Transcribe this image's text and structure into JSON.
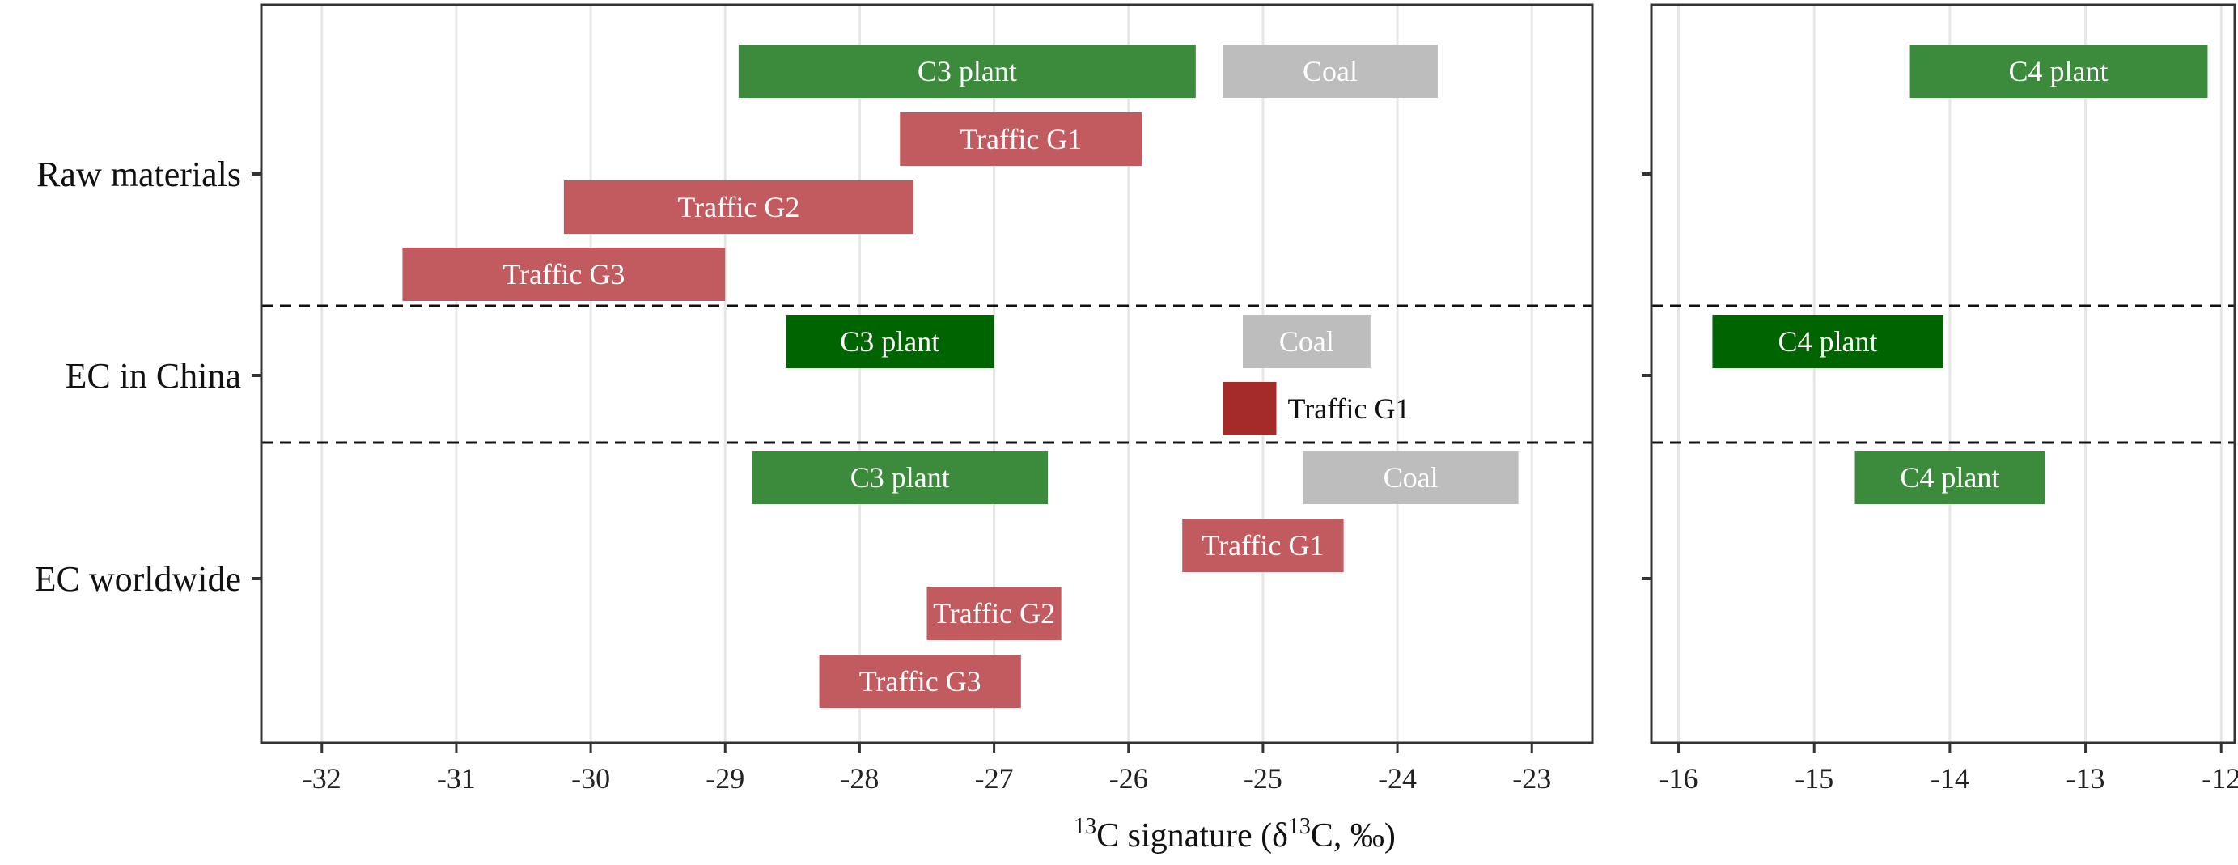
{
  "chart_data": {
    "type": "range-bar",
    "xlabel": {
      "sup1": "13",
      "part1": "C signature (δ",
      "sup2": "13",
      "part2": "C, ‰)"
    },
    "groups": [
      "Raw materials",
      "EC in China",
      "EC worldwide"
    ],
    "panels": [
      {
        "name": "left",
        "xlim": [
          -32.45,
          -22.55
        ],
        "ticks": [
          -32,
          -31,
          -30,
          -29,
          -28,
          -27,
          -26,
          -25,
          -24,
          -23
        ],
        "tick_labels": [
          "-32",
          "-31",
          "-30",
          "-29",
          "-28",
          "-27",
          "-26",
          "-25",
          "-24",
          "-23"
        ]
      },
      {
        "name": "right",
        "xlim": [
          -16.2,
          -11.9
        ],
        "ticks": [
          -16,
          -15,
          -14,
          -13,
          -12
        ],
        "tick_labels": [
          "-16",
          "-15",
          "-14",
          "-13",
          "-12"
        ]
      }
    ],
    "bars": [
      {
        "panel": 0,
        "group": 0,
        "row": 0,
        "label": "C3 plant",
        "range": [
          -28.9,
          -25.5
        ],
        "color": "#3c8a3c",
        "label_pos": "inside"
      },
      {
        "panel": 0,
        "group": 0,
        "row": 0,
        "label": "Coal",
        "range": [
          -25.3,
          -23.7
        ],
        "color": "#bdbdbd",
        "label_pos": "inside"
      },
      {
        "panel": 0,
        "group": 0,
        "row": 1,
        "label": "Traffic G1",
        "range": [
          -27.7,
          -25.9
        ],
        "color": "#c15b60",
        "label_pos": "inside"
      },
      {
        "panel": 0,
        "group": 0,
        "row": 2,
        "label": "Traffic G2",
        "range": [
          -30.2,
          -27.6
        ],
        "color": "#c15b60",
        "label_pos": "inside"
      },
      {
        "panel": 0,
        "group": 0,
        "row": 3,
        "label": "Traffic G3",
        "range": [
          -31.4,
          -29.0
        ],
        "color": "#c15b60",
        "label_pos": "inside"
      },
      {
        "panel": 1,
        "group": 0,
        "row": 0,
        "label": "C4 plant",
        "range": [
          -14.3,
          -12.1
        ],
        "color": "#3c8a3c",
        "label_pos": "inside"
      },
      {
        "panel": 0,
        "group": 1,
        "row": 0,
        "label": "C3 plant",
        "range": [
          -28.55,
          -27.0
        ],
        "color": "#006400",
        "label_pos": "inside"
      },
      {
        "panel": 0,
        "group": 1,
        "row": 0,
        "label": "Coal",
        "range": [
          -25.15,
          -24.2
        ],
        "color": "#bdbdbd",
        "label_pos": "inside"
      },
      {
        "panel": 0,
        "group": 1,
        "row": 1,
        "label": "Traffic G1",
        "range": [
          -25.3,
          -24.9
        ],
        "color": "#a52a2a",
        "label_pos": "right"
      },
      {
        "panel": 1,
        "group": 1,
        "row": 0,
        "label": "C4 plant",
        "range": [
          -15.75,
          -14.05
        ],
        "color": "#006400",
        "label_pos": "inside"
      },
      {
        "panel": 0,
        "group": 2,
        "row": 0,
        "label": "C3 plant",
        "range": [
          -28.8,
          -26.6
        ],
        "color": "#3c8a3c",
        "label_pos": "inside"
      },
      {
        "panel": 0,
        "group": 2,
        "row": 0,
        "label": "Coal",
        "range": [
          -24.7,
          -23.1
        ],
        "color": "#bdbdbd",
        "label_pos": "inside"
      },
      {
        "panel": 0,
        "group": 2,
        "row": 1,
        "label": "Traffic G1",
        "range": [
          -25.6,
          -24.4
        ],
        "color": "#c15b60",
        "label_pos": "inside"
      },
      {
        "panel": 0,
        "group": 2,
        "row": 2,
        "label": "Traffic G2",
        "range": [
          -27.5,
          -26.5
        ],
        "color": "#c15b60",
        "label_pos": "inside"
      },
      {
        "panel": 0,
        "group": 2,
        "row": 3,
        "label": "Traffic G3",
        "range": [
          -28.3,
          -26.8
        ],
        "color": "#c15b60",
        "label_pos": "inside"
      },
      {
        "panel": 1,
        "group": 2,
        "row": 0,
        "label": "C4 plant",
        "range": [
          -14.7,
          -13.3
        ],
        "color": "#3c8a3c",
        "label_pos": "inside"
      }
    ],
    "group_separators": "dashed",
    "grid": "vertical-major",
    "legend": "none"
  }
}
